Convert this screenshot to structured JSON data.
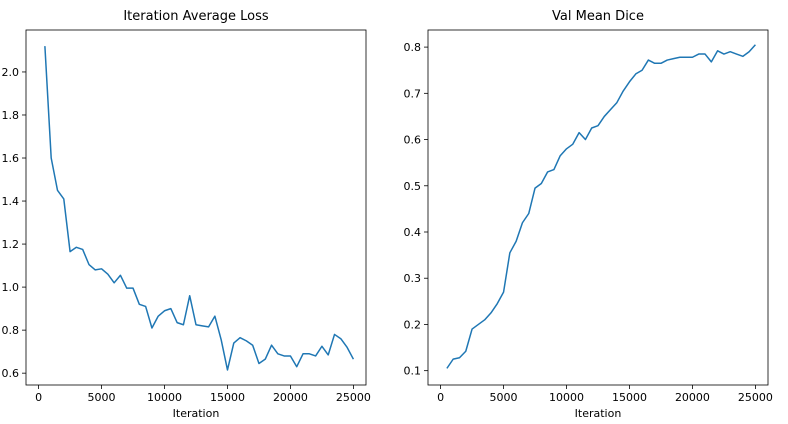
{
  "chart_data": [
    {
      "type": "line",
      "title": "Iteration Average Loss",
      "xlabel": "Iteration",
      "ylabel": "",
      "xlim": [
        -1000,
        26000
      ],
      "ylim": [
        0.545,
        2.195
      ],
      "xticks": [
        0,
        5000,
        10000,
        15000,
        20000,
        25000
      ],
      "xtick_labels": [
        "0",
        "5000",
        "10000",
        "15000",
        "20000",
        "25000"
      ],
      "yticks": [
        0.6,
        0.8,
        1.0,
        1.2,
        1.4,
        1.6,
        1.8,
        2.0
      ],
      "ytick_labels": [
        "0.6",
        "0.8",
        "1.0",
        "1.2",
        "1.4",
        "1.6",
        "1.8",
        "2.0"
      ],
      "grid": false,
      "color": "#1f77b4",
      "x": [
        500,
        1000,
        1500,
        2000,
        2500,
        3000,
        3500,
        4000,
        4500,
        5000,
        5500,
        6000,
        6500,
        7000,
        7500,
        8000,
        8500,
        9000,
        9500,
        10000,
        10500,
        11000,
        11500,
        12000,
        12500,
        13000,
        13500,
        14000,
        14500,
        15000,
        15500,
        16000,
        16500,
        17000,
        17500,
        18000,
        18500,
        19000,
        19500,
        20000,
        20500,
        21000,
        21500,
        22000,
        22500,
        23000,
        23500,
        24000,
        24500,
        25000
      ],
      "y": [
        2.12,
        1.6,
        1.45,
        1.41,
        1.165,
        1.185,
        1.175,
        1.105,
        1.08,
        1.085,
        1.06,
        1.02,
        1.055,
        0.995,
        0.995,
        0.92,
        0.91,
        0.81,
        0.865,
        0.89,
        0.9,
        0.835,
        0.825,
        0.96,
        0.825,
        0.82,
        0.815,
        0.865,
        0.755,
        0.615,
        0.74,
        0.765,
        0.75,
        0.73,
        0.645,
        0.665,
        0.73,
        0.69,
        0.68,
        0.68,
        0.63,
        0.69,
        0.69,
        0.68,
        0.725,
        0.685,
        0.78,
        0.76,
        0.72,
        0.665
      ]
    },
    {
      "type": "line",
      "title": "Val Mean Dice",
      "xlabel": "Iteration",
      "ylabel": "",
      "xlim": [
        -1000,
        26000
      ],
      "ylim": [
        0.069,
        0.837
      ],
      "xticks": [
        0,
        5000,
        10000,
        15000,
        20000,
        25000
      ],
      "xtick_labels": [
        "0",
        "5000",
        "10000",
        "15000",
        "20000",
        "25000"
      ],
      "yticks": [
        0.1,
        0.2,
        0.3,
        0.4,
        0.5,
        0.6,
        0.7,
        0.8
      ],
      "ytick_labels": [
        "0.1",
        "0.2",
        "0.3",
        "0.4",
        "0.5",
        "0.6",
        "0.7",
        "0.8"
      ],
      "grid": false,
      "color": "#1f77b4",
      "x": [
        500,
        1000,
        1500,
        2000,
        2500,
        3000,
        3500,
        4000,
        4500,
        5000,
        5500,
        6000,
        6500,
        7000,
        7500,
        8000,
        8500,
        9000,
        9500,
        10000,
        10500,
        11000,
        11500,
        12000,
        12500,
        13000,
        13500,
        14000,
        14500,
        15000,
        15500,
        16000,
        16500,
        17000,
        17500,
        18000,
        18500,
        19000,
        19500,
        20000,
        20500,
        21000,
        21500,
        22000,
        22500,
        23000,
        23500,
        24000,
        24500,
        25000
      ],
      "y": [
        0.105,
        0.125,
        0.128,
        0.142,
        0.19,
        0.2,
        0.21,
        0.225,
        0.245,
        0.27,
        0.355,
        0.38,
        0.42,
        0.44,
        0.495,
        0.505,
        0.53,
        0.535,
        0.565,
        0.58,
        0.59,
        0.615,
        0.6,
        0.625,
        0.63,
        0.65,
        0.665,
        0.68,
        0.705,
        0.725,
        0.742,
        0.75,
        0.772,
        0.765,
        0.765,
        0.772,
        0.775,
        0.778,
        0.778,
        0.778,
        0.785,
        0.785,
        0.768,
        0.792,
        0.785,
        0.79,
        0.785,
        0.78,
        0.79,
        0.805
      ]
    }
  ]
}
